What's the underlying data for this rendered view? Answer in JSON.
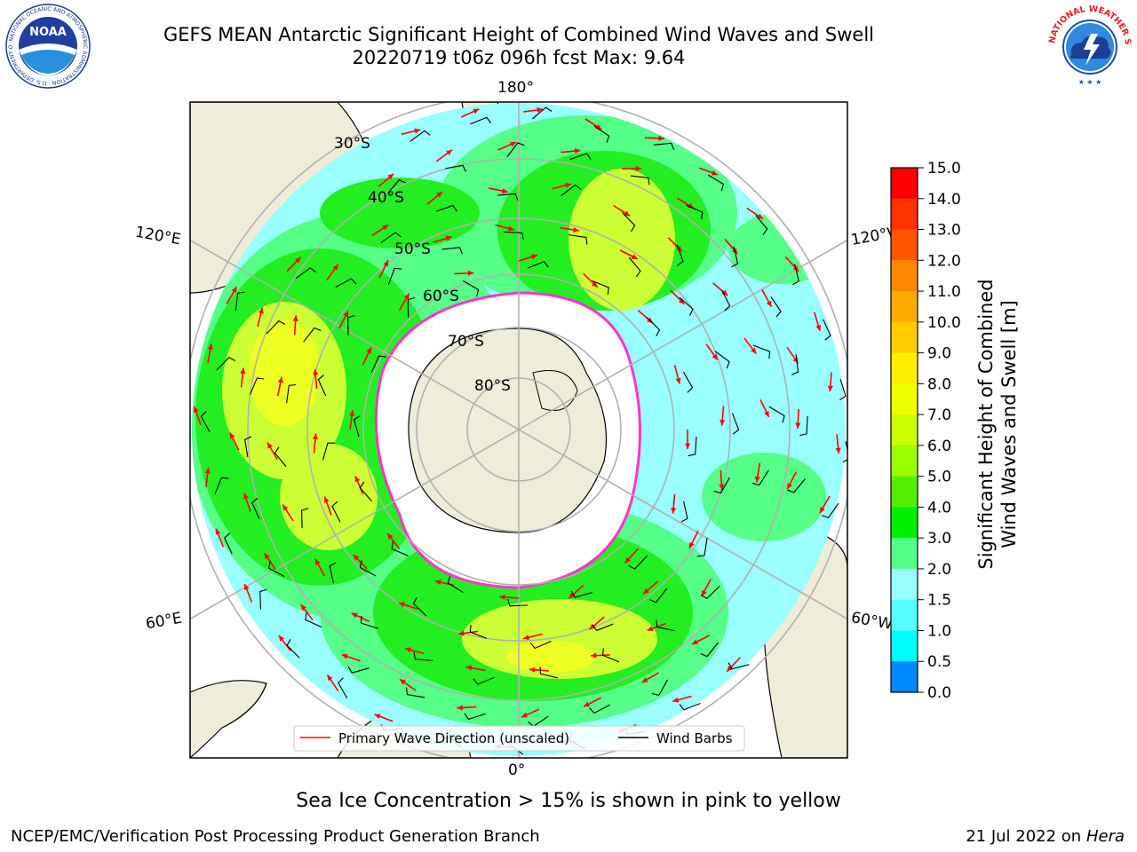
{
  "header": {
    "title_line1": "GEFS MEAN Antarctic Significant Height of Combined Wind Waves and Swell",
    "title_line2": "20220719 t06z 096h fcst   Max: 9.64"
  },
  "map": {
    "projection": "south-polar-stereographic",
    "colors": {
      "ocean_low": "#9ff",
      "ocean_mid": "#55ff88",
      "green": "#22ee22",
      "yellow_green": "#ccff33",
      "yellow": "#eeff22",
      "ice": "#ffffff",
      "ice_edge": "#ff33cc",
      "land": "#efedda",
      "gridline": "#b0b0b0",
      "arrow": "#ff0000",
      "barb": "#000000"
    },
    "longitude_labels": [
      "180°",
      "120°E",
      "120°W",
      "60°E",
      "60°W",
      "0°"
    ],
    "latitude_labels": [
      "30°S",
      "40°S",
      "50°S",
      "60°S",
      "70°S",
      "80°S"
    ]
  },
  "legend": {
    "primary_wave": "Primary Wave Direction (unscaled)",
    "wind_barbs": "Wind Barbs"
  },
  "colorbar": {
    "label_line1": "Significant Height of Combined",
    "label_line2": "Wind Waves and Swell [m]",
    "ticks": [
      "15.0",
      "14.0",
      "13.0",
      "12.0",
      "11.0",
      "10.0",
      "9.0",
      "8.0",
      "7.0",
      "6.0",
      "5.0",
      "4.0",
      "3.0",
      "2.0",
      "1.5",
      "1.0",
      "0.5",
      "0.0"
    ],
    "colors": [
      "#ff0000",
      "#ff3300",
      "#ff5500",
      "#ff8800",
      "#ffaa00",
      "#ffcc00",
      "#ffee00",
      "#eeff00",
      "#ccff00",
      "#99ff00",
      "#55ee00",
      "#00ee00",
      "#55ff88",
      "#99ffff",
      "#55ffff",
      "#00ffff",
      "#0088ff",
      "#0000ff"
    ]
  },
  "footer": {
    "ice_note": "Sea Ice Concentration > 15% is shown in pink to yellow",
    "left": "NCEP/EMC/Verification Post Processing Product Generation Branch",
    "right_date": "21 Jul 2022 on ",
    "right_machine": "Hera"
  },
  "logos": {
    "noaa_text": "NOAA",
    "noaa_ring": "NATIONAL OCEANIC AND ATMOSPHERIC ADMINISTRATION · U.S. DEPARTMENT OF COMMERCE",
    "nws_ring": "NATIONAL WEATHER SERVICE"
  }
}
